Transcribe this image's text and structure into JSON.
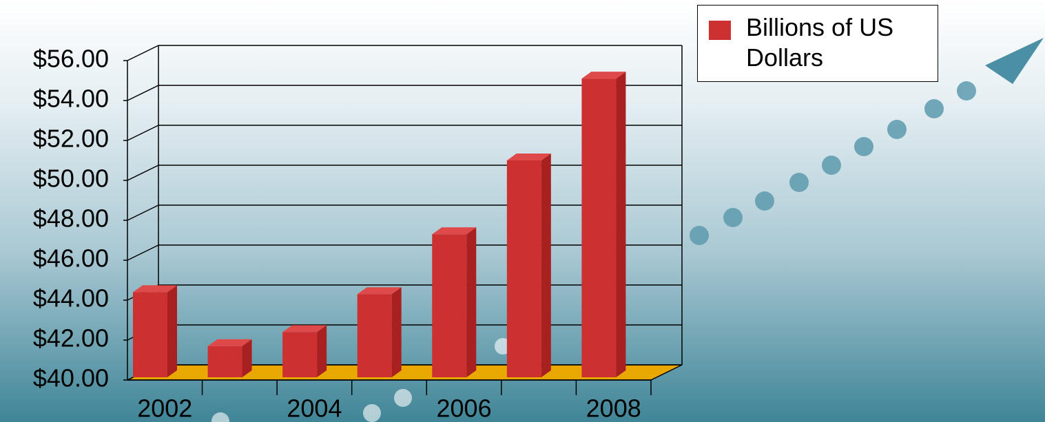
{
  "chart_data": {
    "type": "bar3d",
    "categories": [
      "2002",
      null,
      "2004",
      null,
      "2006",
      null,
      "2008"
    ],
    "series": [
      {
        "name": "Billions of US Dollars",
        "color": "#cc3030",
        "values": [
          44.4,
          41.7,
          42.4,
          44.3,
          47.3,
          51.0,
          55.1
        ]
      }
    ],
    "ylim": [
      40,
      56
    ],
    "yticks": [
      {
        "value": 40,
        "label": "$40.00"
      },
      {
        "value": 42,
        "label": "$42.00"
      },
      {
        "value": 44,
        "label": "$44.00"
      },
      {
        "value": 46,
        "label": "$46.00"
      },
      {
        "value": 48,
        "label": "$48.00"
      },
      {
        "value": 50,
        "label": "$50.00"
      },
      {
        "value": 52,
        "label": "$52.00"
      },
      {
        "value": 54,
        "label": "$54.00"
      },
      {
        "value": 56,
        "label": "$56.00"
      }
    ],
    "grid": true,
    "legend": "top-right",
    "floor_color": "#e8a800"
  }
}
